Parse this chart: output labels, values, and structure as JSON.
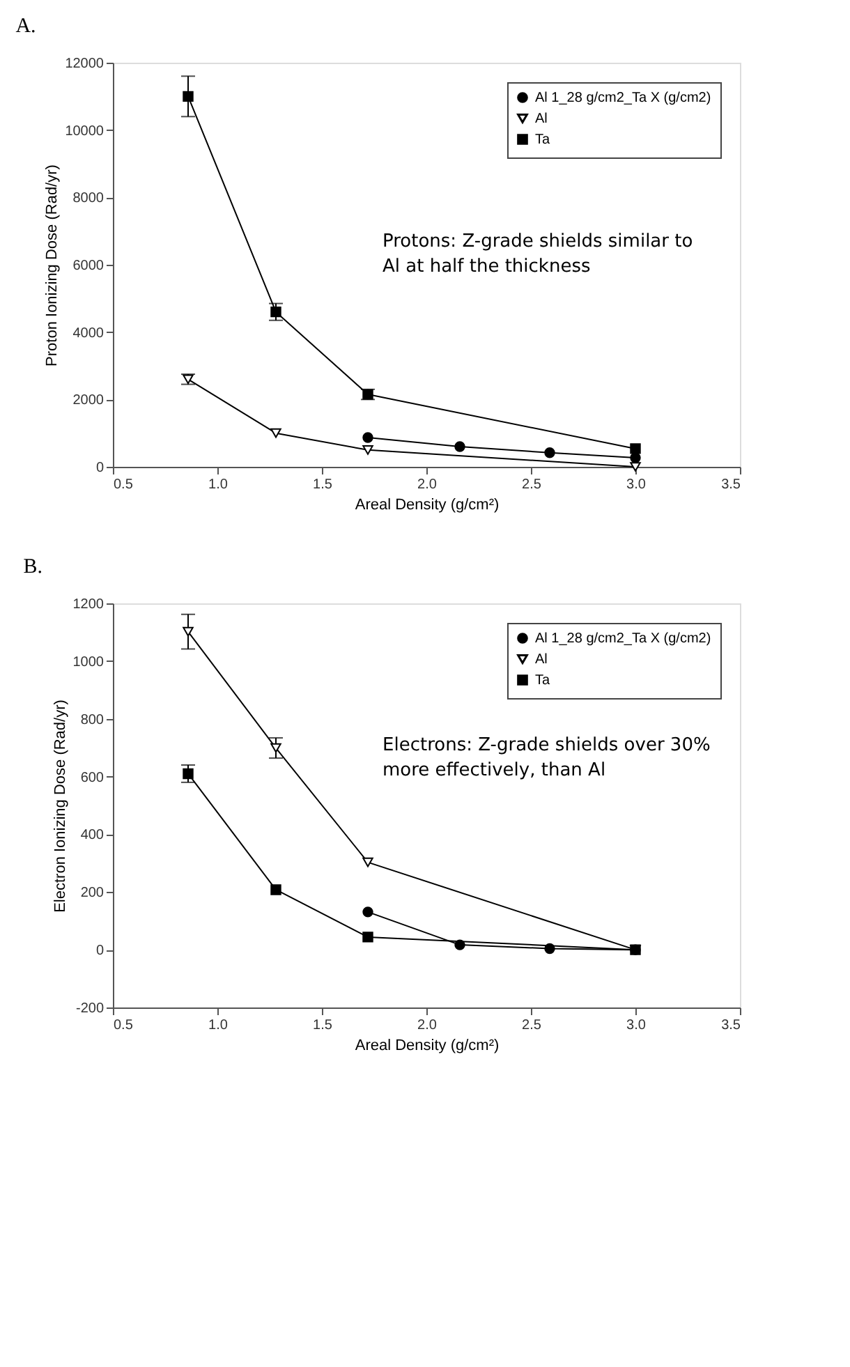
{
  "chart_data": [
    {
      "type": "line",
      "title": "A.",
      "xlabel": "Areal Density (g/cm²)",
      "ylabel": "Proton Ionizing Dose (Rad/yr)",
      "xlim": [
        0.5,
        3.5
      ],
      "ylim": [
        0,
        12000
      ],
      "xticks": [
        {
          "value": 0.5,
          "label": "0.5"
        },
        {
          "value": 1,
          "label": "1.0"
        },
        {
          "value": 1.5,
          "label": "1.5"
        },
        {
          "value": 2,
          "label": "2.0"
        },
        {
          "value": 2.5,
          "label": "2.5"
        },
        {
          "value": 3,
          "label": "3.0"
        },
        {
          "value": 3.5,
          "label": "3.5"
        }
      ],
      "yticks": [
        0,
        2000,
        4000,
        6000,
        8000,
        10000,
        12000
      ],
      "grid": false,
      "legend": "top right",
      "series": [
        {
          "name": "Al 1_28 g/cm2_Ta X (g/cm2)",
          "color": "#000000",
          "marker": "circle",
          "x": [
            1.72,
            2.16,
            2.59,
            3.0
          ],
          "values": [
            870,
            600,
            420,
            270
          ]
        },
        {
          "name": "Al",
          "color": "#000000",
          "marker": "triangle",
          "x": [
            0.86,
            1.28,
            1.72,
            3.0
          ],
          "values": [
            2600,
            1000,
            500,
            0
          ],
          "errors": [
            150,
            null,
            null,
            null
          ]
        },
        {
          "name": "Ta",
          "color": "#000000",
          "marker": "square",
          "x": [
            0.86,
            1.28,
            1.72,
            3.0
          ],
          "values": [
            11000,
            4600,
            2150,
            540
          ],
          "errors": [
            600,
            250,
            150,
            null
          ]
        }
      ],
      "annotations": [
        "Protons:  Z-grade shields similar to Al at half the thickness"
      ]
    },
    {
      "type": "line",
      "title": "B.",
      "xlabel": "Areal Density (g/cm²)",
      "ylabel": "Electron Ionizing Dose (Rad/yr)",
      "xlim": [
        0.5,
        3.5
      ],
      "ylim": [
        -200,
        1200
      ],
      "xticks": [
        {
          "value": 0.5,
          "label": "0.5"
        },
        {
          "value": 1,
          "label": "1.0"
        },
        {
          "value": 1.5,
          "label": "1.5"
        },
        {
          "value": 2,
          "label": "2.0"
        },
        {
          "value": 2.5,
          "label": "2.5"
        },
        {
          "value": 3,
          "label": "3.0"
        },
        {
          "value": 3.5,
          "label": "3.5"
        }
      ],
      "yticks": [
        -200,
        0,
        200,
        400,
        600,
        800,
        1000,
        1200
      ],
      "grid": false,
      "legend": "top right",
      "series": [
        {
          "name": "Al 1_28 g/cm2_Ta X (g/cm2)",
          "color": "#000000",
          "marker": "circle",
          "x": [
            1.72,
            2.16,
            2.59,
            3.0
          ],
          "values": [
            131,
            17,
            4,
            0
          ]
        },
        {
          "name": "Al",
          "color": "#000000",
          "marker": "triangle",
          "x": [
            0.86,
            1.28,
            1.72,
            3.0
          ],
          "values": [
            1102,
            699,
            303,
            0
          ],
          "errors": [
            60,
            35,
            null,
            null
          ]
        },
        {
          "name": "Ta",
          "color": "#000000",
          "marker": "square",
          "x": [
            0.86,
            1.28,
            1.72,
            3.0
          ],
          "values": [
            610,
            208,
            44,
            0
          ],
          "errors": [
            30,
            null,
            null,
            null
          ]
        }
      ],
      "annotations": [
        "Electrons:  Z-grade shields over 30% more effectively, than Al"
      ]
    }
  ]
}
